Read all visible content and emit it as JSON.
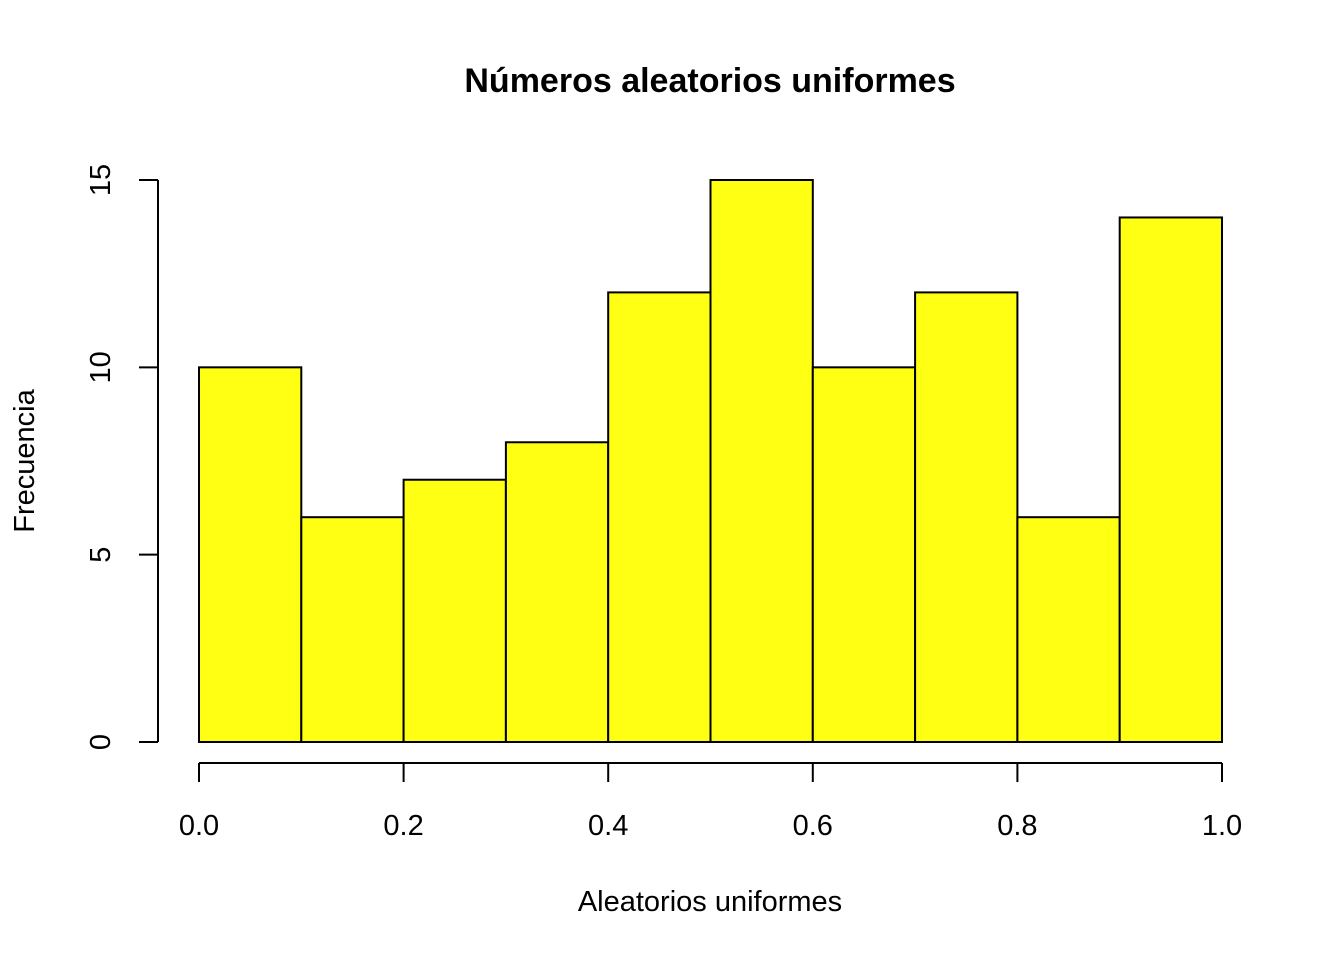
{
  "chart_data": {
    "type": "bar",
    "title": "Números aleatorios uniformes",
    "xlabel": "Aleatorios uniformes",
    "ylabel": "Frecuencia",
    "bin_edges": [
      0.0,
      0.1,
      0.2,
      0.3,
      0.4,
      0.5,
      0.6,
      0.7,
      0.8,
      0.9,
      1.0
    ],
    "values": [
      10,
      6,
      7,
      8,
      12,
      15,
      10,
      12,
      6,
      14
    ],
    "xlim": [
      0.0,
      1.0
    ],
    "ylim": [
      0,
      15
    ],
    "x_ticks": [
      0.0,
      0.2,
      0.4,
      0.6,
      0.8,
      1.0
    ],
    "x_tick_labels": [
      "0.0",
      "0.2",
      "0.4",
      "0.6",
      "0.8",
      "1.0"
    ],
    "y_ticks": [
      0,
      5,
      10,
      15
    ],
    "y_tick_labels": [
      "0",
      "5",
      "10",
      "15"
    ],
    "bar_color": "#ffff14",
    "edge_color": "#000000",
    "grid": false,
    "legend": "none"
  }
}
